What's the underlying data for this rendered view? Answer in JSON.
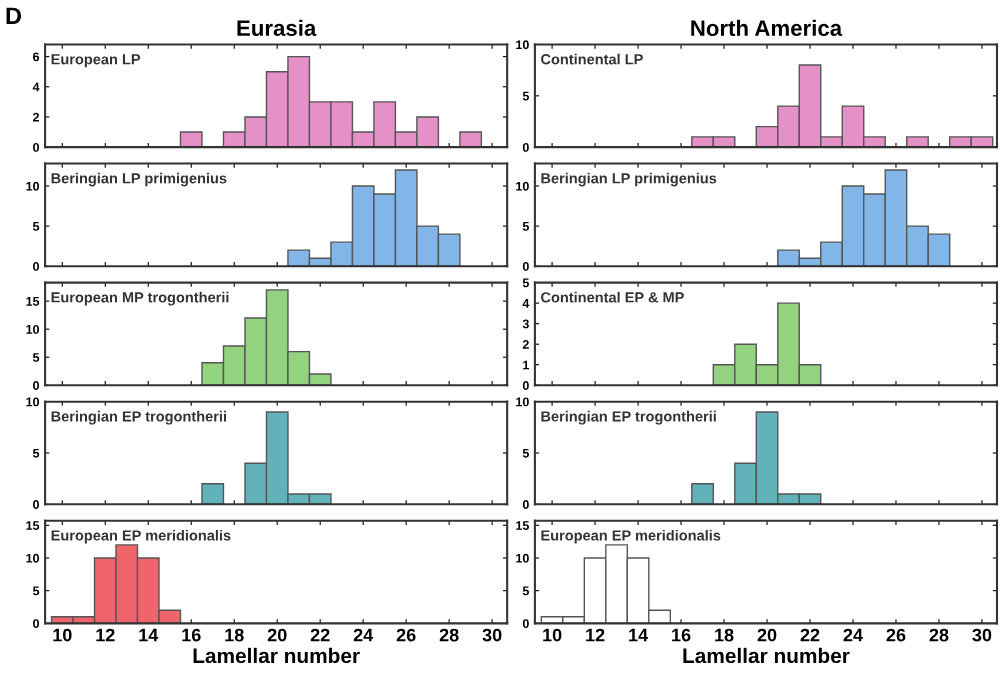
{
  "chart_data": [
    {
      "type": "histogram",
      "title": "Eurasia",
      "subtitle": "European LP",
      "annotations": [
        "D"
      ],
      "bins": [
        9.5,
        10.5,
        11.5,
        12.5,
        13.5,
        14.5,
        15.5,
        16.5,
        17.5,
        18.5,
        19.5,
        20.5,
        21.5,
        22.5,
        23.5,
        24.5,
        25.5,
        26.5,
        27.5,
        28.5,
        29.5,
        30.5
      ],
      "values": [
        0,
        0,
        0,
        0,
        0,
        0,
        1,
        0,
        1,
        2,
        5,
        6,
        3,
        3,
        1,
        3,
        1,
        2,
        0,
        1,
        0
      ],
      "color": "#e591c8",
      "xlim": [
        9.2,
        30.7
      ],
      "xticks": [
        10,
        12,
        14,
        16,
        18,
        20,
        22,
        24,
        26,
        28,
        30
      ],
      "ylim": [
        0,
        6.8
      ],
      "yticks": [
        0,
        2,
        4,
        6
      ],
      "tick_labels": "y"
    },
    {
      "type": "histogram",
      "title": "North America",
      "subtitle": "Continental LP",
      "bins": [
        9.5,
        10.5,
        11.5,
        12.5,
        13.5,
        14.5,
        15.5,
        16.5,
        17.5,
        18.5,
        19.5,
        20.5,
        21.5,
        22.5,
        23.5,
        24.5,
        25.5,
        26.5,
        27.5,
        28.5,
        29.5,
        30.5
      ],
      "values": [
        0,
        0,
        0,
        0,
        0,
        0,
        0,
        1,
        1,
        0,
        2,
        4,
        8,
        1,
        4,
        1,
        0,
        1,
        0,
        1,
        1
      ],
      "color": "#e591c8",
      "xlim": [
        9.2,
        30.7
      ],
      "xticks": [
        10,
        12,
        14,
        16,
        18,
        20,
        22,
        24,
        26,
        28,
        30
      ],
      "ylim": [
        0,
        10
      ],
      "yticks": [
        0,
        5,
        10
      ],
      "tick_labels": "y"
    },
    {
      "type": "histogram",
      "subtitle": "Beringian LP primigenius",
      "bins": [
        9.5,
        10.5,
        11.5,
        12.5,
        13.5,
        14.5,
        15.5,
        16.5,
        17.5,
        18.5,
        19.5,
        20.5,
        21.5,
        22.5,
        23.5,
        24.5,
        25.5,
        26.5,
        27.5,
        28.5,
        29.5,
        30.5
      ],
      "values": [
        0,
        0,
        0,
        0,
        0,
        0,
        0,
        0,
        0,
        0,
        0,
        2,
        1,
        3,
        10,
        9,
        12,
        5,
        4,
        0,
        0
      ],
      "color": "#82b6e8",
      "xlim": [
        9.2,
        30.7
      ],
      "xticks": [
        10,
        12,
        14,
        16,
        18,
        20,
        22,
        24,
        26,
        28,
        30
      ],
      "ylim": [
        0,
        12.8
      ],
      "yticks": [
        0,
        5,
        10
      ],
      "tick_labels": "y"
    },
    {
      "type": "histogram",
      "subtitle": "Beringian LP primigenius",
      "bins": [
        9.5,
        10.5,
        11.5,
        12.5,
        13.5,
        14.5,
        15.5,
        16.5,
        17.5,
        18.5,
        19.5,
        20.5,
        21.5,
        22.5,
        23.5,
        24.5,
        25.5,
        26.5,
        27.5,
        28.5,
        29.5,
        30.5
      ],
      "values": [
        0,
        0,
        0,
        0,
        0,
        0,
        0,
        0,
        0,
        0,
        0,
        2,
        1,
        3,
        10,
        9,
        12,
        5,
        4,
        0,
        0
      ],
      "color": "#82b6e8",
      "xlim": [
        9.2,
        30.7
      ],
      "xticks": [
        10,
        12,
        14,
        16,
        18,
        20,
        22,
        24,
        26,
        28,
        30
      ],
      "ylim": [
        0,
        12.8
      ],
      "yticks": [
        0,
        5,
        10
      ],
      "tick_labels": "y"
    },
    {
      "type": "histogram",
      "subtitle": "European MP trogontherii",
      "bins": [
        9.5,
        10.5,
        11.5,
        12.5,
        13.5,
        14.5,
        15.5,
        16.5,
        17.5,
        18.5,
        19.5,
        20.5,
        21.5,
        22.5,
        23.5,
        24.5,
        25.5,
        26.5,
        27.5,
        28.5,
        29.5,
        30.5
      ],
      "values": [
        0,
        0,
        0,
        0,
        0,
        0,
        0,
        4,
        7,
        12,
        17,
        6,
        2,
        0,
        0,
        0,
        0,
        0,
        0,
        0,
        0
      ],
      "color": "#93d27f",
      "xlim": [
        9.2,
        30.7
      ],
      "xticks": [
        10,
        12,
        14,
        16,
        18,
        20,
        22,
        24,
        26,
        28,
        30
      ],
      "ylim": [
        0,
        18.3
      ],
      "yticks": [
        0,
        5,
        10,
        15
      ],
      "tick_labels": "y"
    },
    {
      "type": "histogram",
      "subtitle": "Continental EP & MP",
      "bins": [
        9.5,
        10.5,
        11.5,
        12.5,
        13.5,
        14.5,
        15.5,
        16.5,
        17.5,
        18.5,
        19.5,
        20.5,
        21.5,
        22.5,
        23.5,
        24.5,
        25.5,
        26.5,
        27.5,
        28.5,
        29.5,
        30.5
      ],
      "values": [
        0,
        0,
        0,
        0,
        0,
        0,
        0,
        0,
        1,
        2,
        1,
        4,
        1,
        0,
        0,
        0,
        0,
        0,
        0,
        0,
        0
      ],
      "color": "#93d27f",
      "xlim": [
        9.2,
        30.7
      ],
      "xticks": [
        10,
        12,
        14,
        16,
        18,
        20,
        22,
        24,
        26,
        28,
        30
      ],
      "ylim": [
        0,
        5
      ],
      "yticks": [
        0,
        1,
        2,
        3,
        4,
        5
      ],
      "tick_labels": "y"
    },
    {
      "type": "histogram",
      "subtitle": "Beringian EP trogontherii",
      "bins": [
        9.5,
        10.5,
        11.5,
        12.5,
        13.5,
        14.5,
        15.5,
        16.5,
        17.5,
        18.5,
        19.5,
        20.5,
        21.5,
        22.5,
        23.5,
        24.5,
        25.5,
        26.5,
        27.5,
        28.5,
        29.5,
        30.5
      ],
      "values": [
        0,
        0,
        0,
        0,
        0,
        0,
        0,
        2,
        0,
        4,
        9,
        1,
        1,
        0,
        0,
        0,
        0,
        0,
        0,
        0,
        0
      ],
      "color": "#62b2ba",
      "xlim": [
        9.2,
        30.7
      ],
      "xticks": [
        10,
        12,
        14,
        16,
        18,
        20,
        22,
        24,
        26,
        28,
        30
      ],
      "ylim": [
        0,
        10
      ],
      "yticks": [
        0,
        5,
        10
      ],
      "tick_labels": "y"
    },
    {
      "type": "histogram",
      "subtitle": "Beringian EP trogontherii",
      "bins": [
        9.5,
        10.5,
        11.5,
        12.5,
        13.5,
        14.5,
        15.5,
        16.5,
        17.5,
        18.5,
        19.5,
        20.5,
        21.5,
        22.5,
        23.5,
        24.5,
        25.5,
        26.5,
        27.5,
        28.5,
        29.5,
        30.5
      ],
      "values": [
        0,
        0,
        0,
        0,
        0,
        0,
        0,
        2,
        0,
        4,
        9,
        1,
        1,
        0,
        0,
        0,
        0,
        0,
        0,
        0,
        0
      ],
      "color": "#62b2ba",
      "xlim": [
        9.2,
        30.7
      ],
      "xticks": [
        10,
        12,
        14,
        16,
        18,
        20,
        22,
        24,
        26,
        28,
        30
      ],
      "ylim": [
        0,
        10
      ],
      "yticks": [
        0,
        5,
        10
      ],
      "tick_labels": "y"
    },
    {
      "type": "histogram",
      "subtitle": "European EP meridionalis",
      "xlabel": "Lamellar number",
      "bins": [
        9.5,
        10.5,
        11.5,
        12.5,
        13.5,
        14.5,
        15.5,
        16.5,
        17.5,
        18.5,
        19.5,
        20.5,
        21.5,
        22.5,
        23.5,
        24.5,
        25.5,
        26.5,
        27.5,
        28.5,
        29.5,
        30.5
      ],
      "values": [
        1,
        1,
        10,
        12,
        10,
        2,
        0,
        0,
        0,
        0,
        0,
        0,
        0,
        0,
        0,
        0,
        0,
        0,
        0,
        0,
        0
      ],
      "color": "#f0646c",
      "xlim": [
        9.2,
        30.7
      ],
      "xticks": [
        10,
        12,
        14,
        16,
        18,
        20,
        22,
        24,
        26,
        28,
        30
      ],
      "ylim": [
        0,
        15.7
      ],
      "yticks": [
        0,
        5,
        10,
        15
      ]
    },
    {
      "type": "histogram",
      "subtitle": "European EP meridionalis",
      "xlabel": "Lamellar number",
      "bins": [
        9.5,
        10.5,
        11.5,
        12.5,
        13.5,
        14.5,
        15.5,
        16.5,
        17.5,
        18.5,
        19.5,
        20.5,
        21.5,
        22.5,
        23.5,
        24.5,
        25.5,
        26.5,
        27.5,
        28.5,
        29.5,
        30.5
      ],
      "values": [
        1,
        1,
        10,
        12,
        10,
        2,
        0,
        0,
        0,
        0,
        0,
        0,
        0,
        0,
        0,
        0,
        0,
        0,
        0,
        0,
        0
      ],
      "color": "#ffffff",
      "xlim": [
        9.2,
        30.7
      ],
      "xticks": [
        10,
        12,
        14,
        16,
        18,
        20,
        22,
        24,
        26,
        28,
        30
      ],
      "ylim": [
        0,
        15.7
      ],
      "yticks": [
        0,
        5,
        10,
        15
      ]
    }
  ]
}
